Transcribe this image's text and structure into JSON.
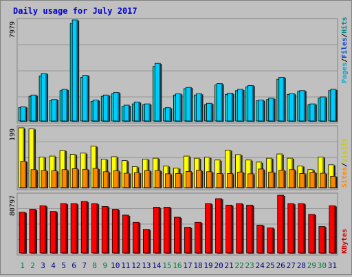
{
  "chart_data": [
    {
      "type": "bar",
      "title": "Daily usage for July 2017",
      "categories": [
        "1",
        "2",
        "3",
        "4",
        "5",
        "6",
        "7",
        "8",
        "9",
        "10",
        "11",
        "12",
        "13",
        "14",
        "15",
        "16",
        "17",
        "18",
        "19",
        "20",
        "21",
        "22",
        "23",
        "24",
        "25",
        "26",
        "27",
        "28",
        "29",
        "30",
        "31"
      ],
      "weekend_days": [
        1,
        2,
        8,
        9,
        15,
        16,
        22,
        23,
        29,
        30
      ],
      "y_tick_label": "7979",
      "ylim": [
        0,
        7979
      ],
      "axis_label_parts": [
        "Pages",
        "/",
        "Files",
        "/",
        "Hits"
      ],
      "series": [
        {
          "name": "Pages",
          "values": [
            1120,
            2050,
            3750,
            1700,
            2500,
            7979,
            3600,
            1650,
            2050,
            2250,
            1250,
            1500,
            1350,
            4550,
            1050,
            2150,
            2650,
            2150,
            1400,
            2950,
            2200,
            2500,
            2800,
            1650,
            1800,
            3450,
            2150,
            2400,
            1350,
            1900,
            2500
          ]
        },
        {
          "name": "Hits",
          "values": [
            1050,
            1950,
            3550,
            1600,
            2400,
            7700,
            3450,
            1550,
            1950,
            2150,
            1150,
            1350,
            1280,
            4300,
            980,
            2050,
            2550,
            2050,
            1300,
            2850,
            2100,
            2400,
            2700,
            1600,
            1700,
            3300,
            2100,
            2350,
            1280,
            1800,
            2400
          ]
        }
      ],
      "colors": {
        "Pages": "#00ccff",
        "Hits": "#00cccc"
      }
    },
    {
      "type": "bar",
      "y_tick_label": "199",
      "ylim": [
        0,
        199
      ],
      "axis_label_parts": [
        "Sites",
        "/",
        "Visits"
      ],
      "series": [
        {
          "name": "Visits",
          "values": [
            199,
            196,
            102,
            105,
            124,
            111,
            115,
            138,
            95,
            103,
            90,
            70,
            95,
            98,
            72,
            65,
            105,
            98,
            101,
            92,
            125,
            110,
            92,
            85,
            98,
            112,
            98,
            72,
            60,
            102,
            76
          ]
        },
        {
          "name": "Sites",
          "values": [
            88,
            60,
            57,
            56,
            60,
            63,
            61,
            64,
            53,
            56,
            48,
            50,
            57,
            57,
            46,
            47,
            54,
            58,
            53,
            47,
            47,
            52,
            46,
            62,
            52,
            58,
            60,
            47,
            51,
            48,
            38
          ]
        }
      ],
      "colors": {
        "Visits": "#ffff00",
        "Sites": "#ff8800"
      }
    },
    {
      "type": "bar",
      "y_tick_label": "80797",
      "ylim": [
        0,
        80797
      ],
      "axis_label_parts": [
        "KBytes"
      ],
      "series": [
        {
          "name": "KBytes",
          "values": [
            57000,
            61000,
            66000,
            58000,
            69000,
            69000,
            72000,
            69000,
            65000,
            61000,
            53000,
            43000,
            33000,
            64000,
            64000,
            50000,
            36000,
            43000,
            69000,
            76000,
            67000,
            69000,
            67000,
            39000,
            35000,
            80797,
            69000,
            69000,
            54000,
            37000,
            66000
          ]
        }
      ],
      "colors": {
        "KBytes": "#ff0000"
      }
    }
  ],
  "colors": {
    "title": "#0000cc",
    "weekday_label": "#000080",
    "weekend_label": "#007b3c",
    "plot_bg": "#c0c0c0",
    "gridline": "#888888"
  }
}
